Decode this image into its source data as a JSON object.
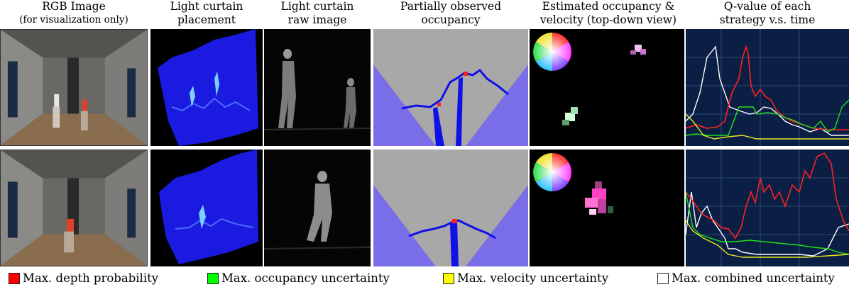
{
  "headers": [
    {
      "line1": "RGB Image",
      "line2": "(for visualization only)"
    },
    {
      "line1": "Light curtain",
      "line2": "placement"
    },
    {
      "line1": "Light curtain",
      "line2": "raw image"
    },
    {
      "line1": "Partially observed",
      "line2": "occupancy"
    },
    {
      "line1": "Estimated occupancy &",
      "line2": "velocity (top-down view)"
    },
    {
      "line1": "Q-value of each",
      "line2": "strategy v.s. time"
    }
  ],
  "legend": [
    {
      "label": "Max. depth probability",
      "color": "#ff0000"
    },
    {
      "label": "Max. occupancy uncertainty",
      "color": "#00ff00"
    },
    {
      "label": "Max. velocity uncertainty",
      "color": "#ffff00"
    },
    {
      "label": "Max. combined uncertainty",
      "color": "#ffffff"
    }
  ],
  "colors": {
    "plot_bg": "#0b1f44",
    "grid": "#2c4a7c",
    "occupancy_gray": "#a8a8a8",
    "occupancy_unobserved": "#7a6ee8",
    "curtain_blue": "#1010e8"
  }
}
